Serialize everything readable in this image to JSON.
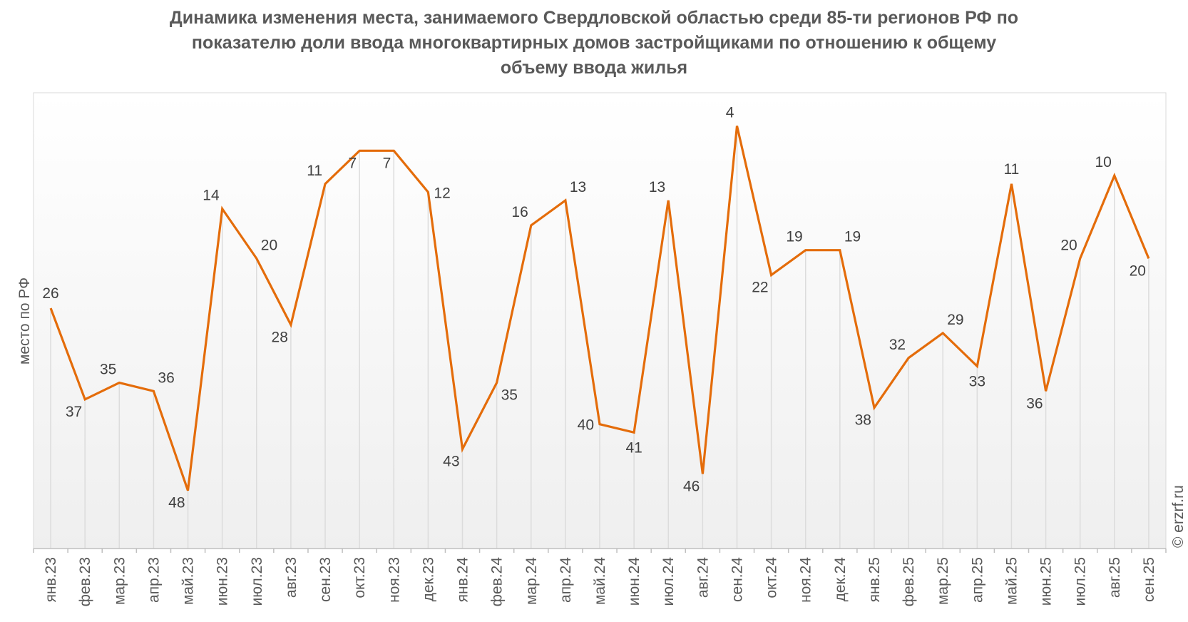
{
  "chart_data": {
    "type": "line",
    "title": "Динамика изменения места, занимаемого Свердловской областью среди 85-ти регионов РФ по показателю доли ввода многоквартирных домов застройщиками по отношению к общему объему ввода жилья",
    "title_lines": [
      "Динамика изменения места, занимаемого Свердловской областью среди 85-ти регионов РФ по",
      "показателю доли ввода многоквартирных домов застройщиками по отношению к общему",
      "объему ввода жилья"
    ],
    "xlabel": "",
    "ylabel": "место по РФ",
    "y_inverted": true,
    "ylim": [
      0,
      55
    ],
    "grid": "vertical drop lines",
    "legend": "none",
    "line_color": "#E46C0A",
    "categories": [
      "янв.23",
      "фев.23",
      "мар.23",
      "апр.23",
      "май.23",
      "июн.23",
      "июл.23",
      "авг.23",
      "сен.23",
      "окт.23",
      "ноя.23",
      "дек.23",
      "янв.24",
      "фев.24",
      "мар.24",
      "апр.24",
      "май.24",
      "июн.24",
      "июл.24",
      "авг.24",
      "сен.24",
      "окт.24",
      "ноя.24",
      "дек.24",
      "янв.25",
      "фев.25",
      "мар.25",
      "апр.25",
      "май.25",
      "июн.25",
      "июл.25",
      "авг.25",
      "сен.25"
    ],
    "values": [
      26,
      37,
      35,
      36,
      48,
      14,
      20,
      28,
      11,
      7,
      7,
      12,
      43,
      35,
      16,
      13,
      40,
      41,
      13,
      46,
      4,
      22,
      19,
      19,
      38,
      32,
      29,
      33,
      11,
      36,
      20,
      10,
      20
    ]
  },
  "watermark": "© erzrf.ru"
}
